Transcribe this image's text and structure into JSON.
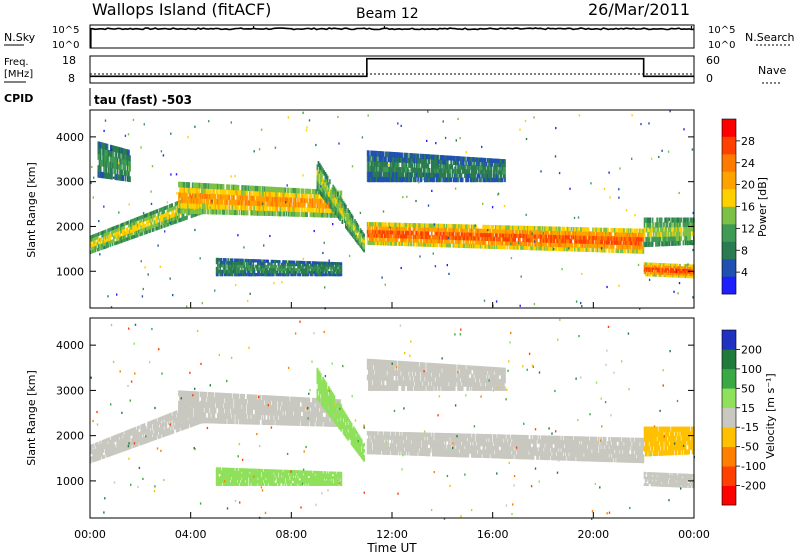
{
  "header": {
    "site": "Wallops Island (fitACF)",
    "beam": "Beam 12",
    "date": "26/Mar/2011"
  },
  "top_panel": {
    "left_label": "N.Sky",
    "right_label": "N.Search",
    "left_ticks": [
      "10^5",
      "10^0"
    ],
    "right_ticks": [
      "10^5",
      "10^0"
    ]
  },
  "freq_panel": {
    "label_line1": "Freq.",
    "label_line2": "[MHz]",
    "left_ticks": [
      "18",
      "8"
    ],
    "right_label": "Nave",
    "right_ticks": [
      "60",
      "0"
    ]
  },
  "cpid": {
    "label": "CPID",
    "value": "tau (fast) -503"
  },
  "colors": {
    "power": [
      "#1e1eff",
      "#2050b0",
      "#2a7a52",
      "#3f9a55",
      "#7cc047",
      "#ffd000",
      "#ffa200",
      "#ff7a00",
      "#ff4000",
      "#ff0000"
    ],
    "velocity": [
      "#2030c0",
      "#1f7a3c",
      "#3aa845",
      "#8fe05a",
      "#c8c8c0",
      "#ffc000",
      "#ff8000",
      "#ff4000",
      "#ff0000"
    ]
  },
  "chart_data": [
    {
      "type": "heatmap",
      "name": "power",
      "ylabel": "Slant Range [km]",
      "ylim": [
        180,
        4600
      ],
      "yticks": [
        "4000",
        "3000",
        "2000",
        "1000"
      ],
      "xlim": [
        "00:00",
        "24:00"
      ],
      "colorbar": {
        "label": "Power [dB]",
        "range": [
          0,
          30
        ],
        "ticks": [
          "28",
          "24",
          "20",
          "16",
          "12",
          "8",
          "4"
        ]
      },
      "echo_bands": [
        {
          "id": "oblique-rise",
          "start_hour": 0.0,
          "end_hour": 4.5,
          "range_km_start": [
            1400,
            1800
          ],
          "range_km_end": [
            2300,
            2800
          ],
          "power_db": 16
        },
        {
          "id": "morning-upper",
          "start_hour": 0.3,
          "end_hour": 1.6,
          "range_km_start": [
            3100,
            3900
          ],
          "range_km_end": [
            3000,
            3700
          ],
          "power_db": 10
        },
        {
          "id": "day-layer",
          "start_hour": 3.5,
          "end_hour": 10.0,
          "range_km_start": [
            2300,
            3000
          ],
          "range_km_end": [
            2200,
            2800
          ],
          "power_db": 20
        },
        {
          "id": "short-range-patch",
          "start_hour": 5.0,
          "end_hour": 10.0,
          "range_km_start": [
            900,
            1300
          ],
          "range_km_end": [
            900,
            1200
          ],
          "power_db": 9
        },
        {
          "id": "descending-streak",
          "start_hour": 9.0,
          "end_hour": 10.9,
          "range_km_start": [
            2800,
            3500
          ],
          "range_km_end": [
            1400,
            1800
          ],
          "power_db": 14
        },
        {
          "id": "evening-main",
          "start_hour": 11.0,
          "end_hour": 22.0,
          "range_km_start": [
            1600,
            2100
          ],
          "range_km_end": [
            1400,
            1950
          ],
          "power_db": 24
        },
        {
          "id": "evening-upper",
          "start_hour": 11.0,
          "end_hour": 16.5,
          "range_km_start": [
            3000,
            3700
          ],
          "range_km_end": [
            3000,
            3500
          ],
          "power_db": 8
        },
        {
          "id": "late-main",
          "start_hour": 22.0,
          "end_hour": 24.0,
          "range_km_start": [
            1550,
            2200
          ],
          "range_km_end": [
            1600,
            2200
          ],
          "power_db": 14
        },
        {
          "id": "late-low",
          "start_hour": 22.0,
          "end_hour": 24.0,
          "range_km_start": [
            900,
            1200
          ],
          "range_km_end": [
            850,
            1150
          ],
          "power_db": 25
        }
      ]
    },
    {
      "type": "heatmap",
      "name": "velocity",
      "ylabel": "Slant Range [km]",
      "ylim": [
        180,
        4600
      ],
      "yticks": [
        "4000",
        "3000",
        "2000",
        "1000"
      ],
      "xlabel": "Time UT",
      "xticks": [
        "00:00",
        "04:00",
        "08:00",
        "12:00",
        "16:00",
        "20:00",
        "00:00"
      ],
      "colorbar": {
        "label": "Velocity [m s⁻¹]",
        "ticks": [
          "200",
          "100",
          "50",
          "15",
          "-15",
          "-50",
          "-100",
          "-200"
        ]
      },
      "echo_bands": [
        {
          "id": "oblique-rise",
          "start_hour": 0.0,
          "end_hour": 4.5,
          "range_km_start": [
            1400,
            1800
          ],
          "range_km_end": [
            2300,
            2800
          ],
          "velocity_ms": 0
        },
        {
          "id": "day-layer",
          "start_hour": 3.5,
          "end_hour": 10.0,
          "range_km_start": [
            2300,
            3000
          ],
          "range_km_end": [
            2200,
            2800
          ],
          "velocity_ms": 0
        },
        {
          "id": "short-range-patch",
          "start_hour": 5.0,
          "end_hour": 10.0,
          "range_km_start": [
            900,
            1300
          ],
          "range_km_end": [
            900,
            1200
          ],
          "velocity_ms": 30
        },
        {
          "id": "descending-streak",
          "start_hour": 9.0,
          "end_hour": 10.9,
          "range_km_start": [
            2800,
            3500
          ],
          "range_km_end": [
            1400,
            1800
          ],
          "velocity_ms": 30
        },
        {
          "id": "evening-main",
          "start_hour": 11.0,
          "end_hour": 22.0,
          "range_km_start": [
            1600,
            2100
          ],
          "range_km_end": [
            1400,
            1950
          ],
          "velocity_ms": 0
        },
        {
          "id": "evening-upper",
          "start_hour": 11.0,
          "end_hour": 16.5,
          "range_km_start": [
            3000,
            3700
          ],
          "range_km_end": [
            3000,
            3500
          ],
          "velocity_ms": 0
        },
        {
          "id": "late-main",
          "start_hour": 22.0,
          "end_hour": 24.0,
          "range_km_start": [
            1550,
            2200
          ],
          "range_km_end": [
            1600,
            2200
          ],
          "velocity_ms": -30
        },
        {
          "id": "late-low",
          "start_hour": 22.0,
          "end_hour": 24.0,
          "range_km_start": [
            900,
            1200
          ],
          "range_km_end": [
            850,
            1150
          ],
          "velocity_ms": 0
        }
      ]
    }
  ],
  "nsky_series": {
    "start_hour": 0,
    "end_hour": 24,
    "level_log": 4.6,
    "spikes_at_hours": [
      6.5,
      11.7,
      23.9
    ]
  },
  "freq_series": {
    "segments": [
      {
        "start_hour": 0,
        "end_hour": 11.0,
        "value_mhz": 10.5
      },
      {
        "start_hour": 11.0,
        "end_hour": 22.0,
        "value_mhz": 17.0
      },
      {
        "start_hour": 22.0,
        "end_hour": 24.0,
        "value_mhz": 10.5
      }
    ]
  },
  "nave_series": {
    "segments": [
      {
        "start_hour": 0,
        "end_hour": 24,
        "value": 20
      }
    ]
  }
}
